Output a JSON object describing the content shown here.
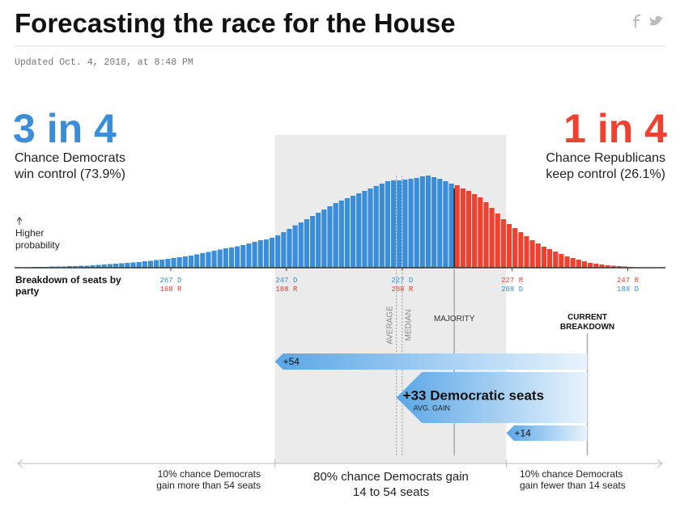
{
  "chart_data": {
    "type": "bar",
    "title": "Forecasting the race for the House",
    "subtitle": "Updated Oct. 4, 2018, at 8:48 PM",
    "dem": {
      "odds": "3 in 4",
      "label": "Chance Democrats win control (73.9%)",
      "color": "#3a8ed9"
    },
    "rep": {
      "odds": "1 in 4",
      "label": "Chance Republicans keep control (26.1%)",
      "color": "#ee4130"
    },
    "ylabel": "Higher probability",
    "xlabel": "Breakdown of seats by party",
    "x": [
      290,
      289,
      288,
      287,
      286,
      285,
      284,
      283,
      282,
      281,
      280,
      279,
      278,
      277,
      276,
      275,
      274,
      273,
      272,
      271,
      270,
      269,
      268,
      267,
      266,
      265,
      264,
      263,
      262,
      261,
      260,
      259,
      258,
      257,
      256,
      255,
      254,
      253,
      252,
      251,
      250,
      249,
      248,
      247,
      246,
      245,
      244,
      243,
      242,
      241,
      240,
      239,
      238,
      237,
      236,
      235,
      234,
      233,
      232,
      231,
      230,
      229,
      228,
      227,
      226,
      225,
      224,
      223,
      222,
      221,
      220,
      219,
      218,
      217,
      216,
      215,
      214,
      213,
      212,
      211,
      210,
      209,
      208,
      207,
      206,
      205,
      204,
      203,
      202,
      201,
      200,
      199,
      198,
      197,
      196,
      195,
      194,
      193,
      192,
      191,
      190,
      189,
      188,
      187,
      186,
      185
    ],
    "values": [
      0.02,
      0.02,
      0.02,
      0.03,
      0.03,
      0.03,
      0.04,
      0.04,
      0.05,
      0.05,
      0.06,
      0.07,
      0.08,
      0.09,
      0.1,
      0.11,
      0.12,
      0.13,
      0.14,
      0.16,
      0.17,
      0.19,
      0.2,
      0.22,
      0.24,
      0.26,
      0.28,
      0.3,
      0.33,
      0.36,
      0.39,
      0.42,
      0.45,
      0.48,
      0.5,
      0.53,
      0.56,
      0.6,
      0.64,
      0.68,
      0.7,
      0.74,
      0.8,
      0.88,
      0.96,
      1.05,
      1.12,
      1.2,
      1.28,
      1.36,
      1.44,
      1.52,
      1.6,
      1.66,
      1.72,
      1.78,
      1.84,
      1.9,
      1.96,
      2.02,
      2.08,
      2.14,
      2.16,
      2.16,
      2.18,
      2.2,
      2.22,
      2.26,
      2.28,
      2.24,
      2.2,
      2.14,
      2.08,
      2.04,
      1.96,
      1.9,
      1.82,
      1.74,
      1.62,
      1.48,
      1.34,
      1.2,
      1.08,
      0.98,
      0.88,
      0.78,
      0.68,
      0.6,
      0.52,
      0.46,
      0.4,
      0.34,
      0.28,
      0.24,
      0.2,
      0.16,
      0.12,
      0.1,
      0.08,
      0.06,
      0.05,
      0.04,
      0.03,
      0.02,
      0.01,
      0.01
    ],
    "xlim": [
      294,
      181.5
    ],
    "ylim": [
      0,
      2.5
    ],
    "xticks": [
      {
        "value": 267,
        "label": "267 D"
      },
      {
        "value": 247,
        "label": "247 D"
      },
      {
        "value": 227,
        "label": "227 D"
      },
      {
        "value": 208,
        "label": "227 R"
      },
      {
        "value": 188,
        "label": "247 R"
      }
    ],
    "xtick_sublabels": [
      "168 R",
      "188 R",
      "208 R",
      "208 D",
      "188 D"
    ],
    "majority": {
      "label": "MAJORITY",
      "value": 218
    },
    "average": {
      "label": "AVERAGE",
      "value": 228
    },
    "median": {
      "label": "MEDIAN",
      "value": 227
    },
    "current_breakdown": {
      "label": "CURRENT BREAKDOWN",
      "value": 195
    },
    "gains": [
      {
        "value": 54,
        "label": "+54"
      },
      {
        "value": 33,
        "label": "+33 Democratic seats"
      },
      {
        "value": 14,
        "label": "+14"
      }
    ],
    "gain_note": "AVG. GAIN",
    "ranges": [
      "10% chance Democrats gain more than 54 seats",
      "80% chance Democrats gain 14 to 54 seats",
      "10% chance Democrats gain fewer than 14 seats"
    ]
  }
}
